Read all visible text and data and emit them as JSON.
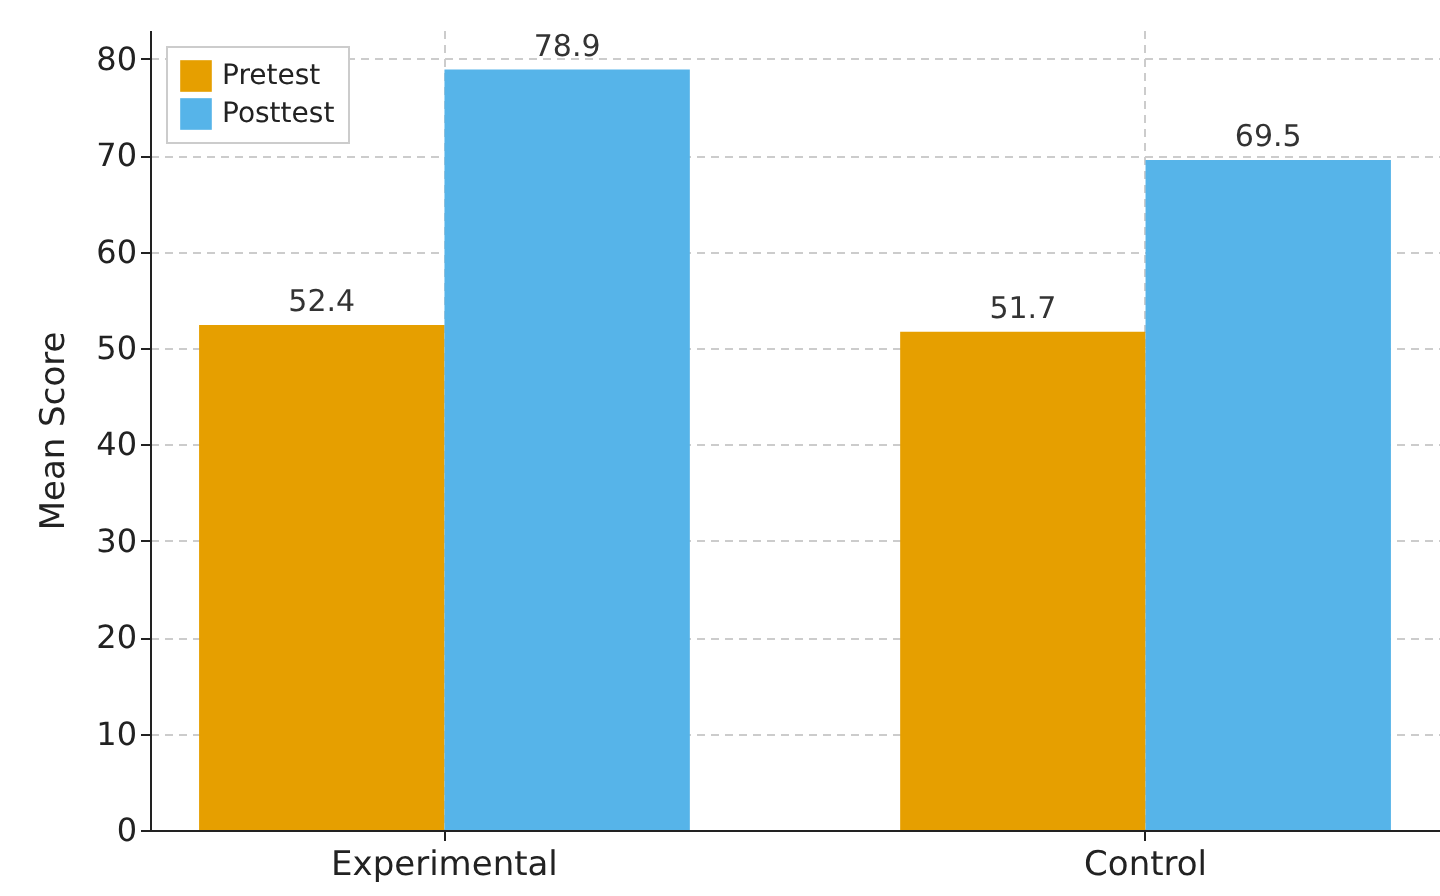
{
  "chart_data": {
    "type": "bar",
    "ylabel": "Mean Score",
    "categories": [
      "Experimental",
      "Control"
    ],
    "series": [
      {
        "name": "Pretest",
        "color": "#e69f00",
        "values": [
          52.4,
          51.7
        ]
      },
      {
        "name": "Posttest",
        "color": "#56b4e9",
        "values": [
          78.9,
          69.5
        ]
      }
    ],
    "ylim": [
      0,
      83
    ],
    "yticks": [
      0,
      10,
      20,
      30,
      40,
      50,
      60,
      70,
      80
    ],
    "grid": true,
    "legend": "top left",
    "data_labels": true
  }
}
